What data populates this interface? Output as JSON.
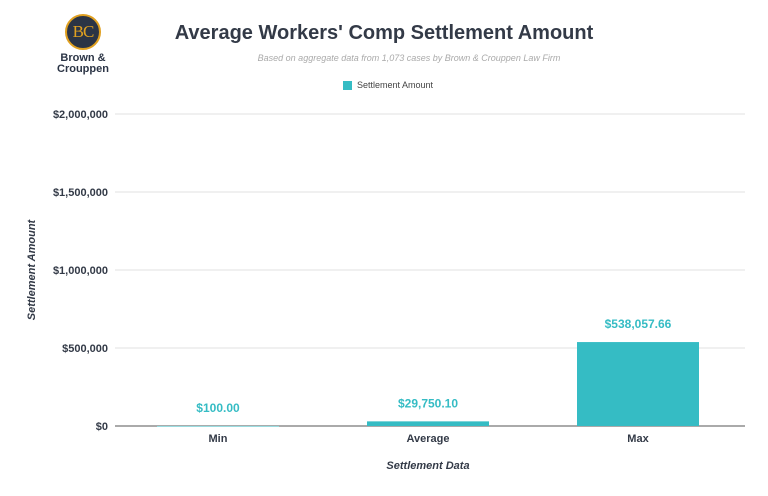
{
  "logo": {
    "initials": "BC",
    "name": "Brown & Crouppen"
  },
  "chart_data": {
    "type": "bar",
    "title": "Average Workers' Comp Settlement Amount",
    "subtitle": "Based on aggregate data from 1,073 cases by Brown & Crouppen Law Firm",
    "xlabel": "Settlement Data",
    "ylabel": "Settlement Amount",
    "categories": [
      "Min",
      "Average",
      "Max"
    ],
    "series": [
      {
        "name": "Settlement Amount",
        "values": [
          100.0,
          29750.1,
          538057.66
        ],
        "color": "#35bcc4"
      }
    ],
    "data_labels": [
      "$100.00",
      "$29,750.10",
      "$538,057.66"
    ],
    "ylim": [
      0,
      2000000
    ],
    "yticks": [
      0,
      500000,
      1000000,
      1500000,
      2000000
    ],
    "ytick_labels": [
      "$0",
      "$500,000",
      "$1,000,000",
      "$1,500,000",
      "$2,000,000"
    ],
    "grid": true,
    "legend": "top"
  }
}
